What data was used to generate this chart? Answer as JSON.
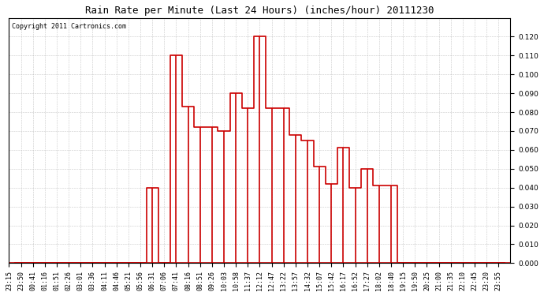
{
  "title": "Rain Rate per Minute (Last 24 Hours) (inches/hour) 20111230",
  "copyright": "Copyright 2011 Cartronics.com",
  "background_color": "#ffffff",
  "line_color": "#cc0000",
  "grid_color": "#bbbbbb",
  "ylim": [
    0.0,
    0.13
  ],
  "yticks": [
    0.0,
    0.01,
    0.02,
    0.03,
    0.04,
    0.05,
    0.06,
    0.07,
    0.08,
    0.09,
    0.1,
    0.11,
    0.12
  ],
  "x_labels": [
    "23:15",
    "23:50",
    "00:41",
    "01:16",
    "01:51",
    "02:26",
    "03:01",
    "03:36",
    "04:11",
    "04:46",
    "05:21",
    "05:56",
    "06:31",
    "07:06",
    "07:41",
    "08:16",
    "08:51",
    "09:26",
    "10:03",
    "10:58",
    "11:37",
    "12:12",
    "12:47",
    "13:22",
    "13:57",
    "14:32",
    "15:07",
    "15:42",
    "16:17",
    "16:52",
    "17:27",
    "18:02",
    "18:40",
    "19:15",
    "19:50",
    "20:25",
    "21:00",
    "21:35",
    "22:10",
    "22:45",
    "23:20",
    "23:55"
  ],
  "values": [
    0.0,
    0.0,
    0.0,
    0.0,
    0.0,
    0.0,
    0.0,
    0.0,
    0.0,
    0.0,
    0.0,
    0.0,
    0.04,
    0.0,
    0.11,
    0.083,
    0.072,
    0.072,
    0.07,
    0.09,
    0.082,
    0.12,
    0.082,
    0.082,
    0.068,
    0.065,
    0.051,
    0.042,
    0.061,
    0.04,
    0.05,
    0.041,
    0.041,
    0.0,
    0.0,
    0.0,
    0.0,
    0.0,
    0.0,
    0.0,
    0.0,
    0.0
  ],
  "title_fontsize": 9,
  "copyright_fontsize": 6,
  "tick_fontsize": 6,
  "ytick_fontsize": 6.5
}
